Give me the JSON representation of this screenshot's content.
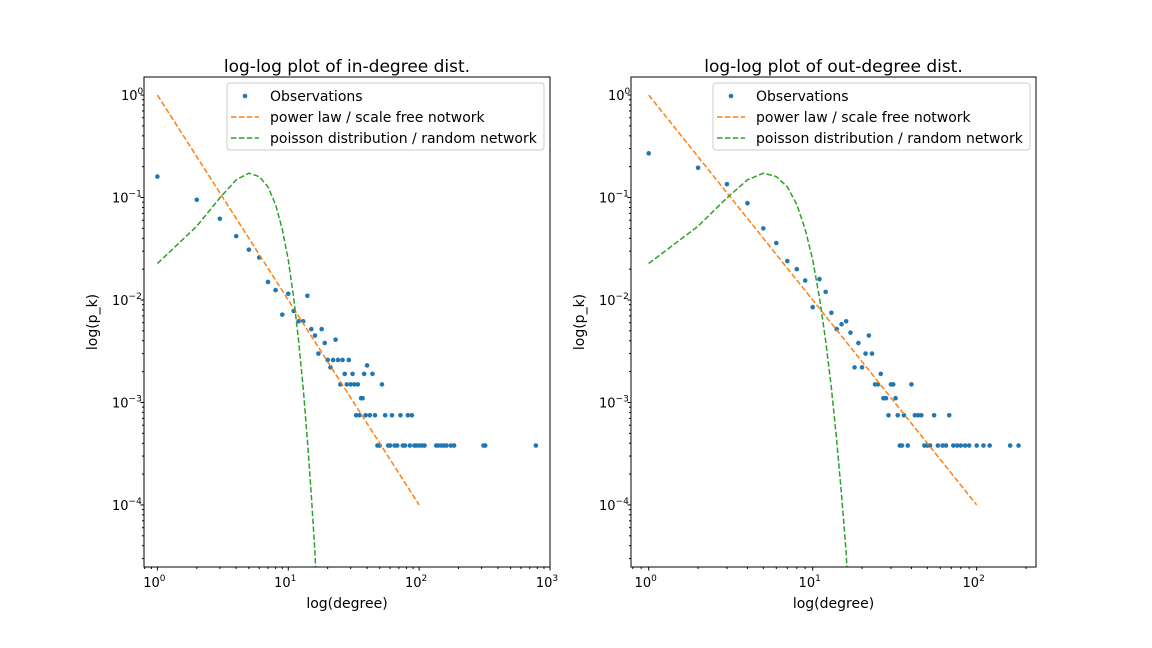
{
  "chart_data": [
    {
      "type": "scatter",
      "title": "log-log plot of in-degree dist.",
      "xlabel": "log(degree)",
      "ylabel": "log(p_k)",
      "xscale": "log",
      "yscale": "log",
      "xlim": [
        0.79,
        1000
      ],
      "ylim": [
        2.48e-05,
        1.5
      ],
      "xticks": [
        {
          "value": 1,
          "base": "10",
          "exp": "0"
        },
        {
          "value": 10,
          "base": "10",
          "exp": "1"
        },
        {
          "value": 100,
          "base": "10",
          "exp": "2"
        },
        {
          "value": 1000,
          "base": "10",
          "exp": "3"
        }
      ],
      "yticks": [
        {
          "value": 1,
          "base": "10",
          "exp": "0"
        },
        {
          "value": 0.1,
          "base": "10",
          "exp": "−1"
        },
        {
          "value": 0.01,
          "base": "10",
          "exp": "−2"
        },
        {
          "value": 0.001,
          "base": "10",
          "exp": "−3"
        },
        {
          "value": 0.0001,
          "base": "10",
          "exp": "−4"
        }
      ],
      "grid": false,
      "legend_position": "top-right",
      "series": [
        {
          "name": "Observations",
          "kind": "points",
          "color": "#1f77b4",
          "x": [
            1,
            2,
            3,
            4,
            5,
            6,
            7,
            8,
            9,
            10,
            11,
            12,
            13,
            14,
            15,
            16,
            17,
            18,
            19,
            20,
            21,
            22,
            23,
            24,
            25,
            26,
            27,
            28,
            29,
            30,
            31,
            32,
            33,
            34,
            35,
            36,
            37,
            38,
            39,
            40,
            42,
            44,
            46,
            48,
            50,
            52,
            55,
            58,
            60,
            62,
            65,
            68,
            72,
            75,
            78,
            82,
            85,
            88,
            92,
            95,
            100,
            105,
            110,
            135,
            140,
            148,
            155,
            162,
            175,
            185,
            310,
            320,
            780
          ],
          "y": [
            0.16,
            0.095,
            0.062,
            0.042,
            0.031,
            0.026,
            0.015,
            0.0125,
            0.0072,
            0.0115,
            0.0078,
            0.0062,
            0.0062,
            0.011,
            0.0052,
            0.0045,
            0.003,
            0.0052,
            0.0038,
            0.0026,
            0.0022,
            0.0026,
            0.0041,
            0.0026,
            0.0015,
            0.0026,
            0.0019,
            0.0015,
            0.0026,
            0.0015,
            0.0019,
            0.0015,
            0.00075,
            0.0015,
            0.00075,
            0.0011,
            0.0011,
            0.0019,
            0.00075,
            0.0023,
            0.00075,
            0.0019,
            0.00075,
            0.00038,
            0.00038,
            0.0015,
            0.00075,
            0.00038,
            0.00038,
            0.00075,
            0.00038,
            0.00038,
            0.00075,
            0.00038,
            0.00038,
            0.00075,
            0.00038,
            0.00075,
            0.00038,
            0.00038,
            0.00038,
            0.00038,
            0.00038,
            0.00038,
            0.00038,
            0.00038,
            0.00038,
            0.00038,
            0.00038,
            0.00038,
            0.00038,
            0.00038,
            0.00038
          ]
        },
        {
          "name": "power law / scale free notwork",
          "kind": "dashed-line",
          "color": "#ff7f0e",
          "x": [
            1,
            100
          ],
          "y": [
            1,
            0.0001
          ]
        },
        {
          "name": "poisson distribution / random network",
          "kind": "dashed-line",
          "color": "#2ca02c",
          "x": [
            1,
            2,
            3,
            4,
            5,
            6,
            7,
            8,
            9,
            10,
            11,
            12,
            13,
            14,
            15,
            16,
            17
          ],
          "y": [
            0.0227,
            0.0525,
            0.0992,
            0.1488,
            0.1727,
            0.1601,
            0.1271,
            0.0854,
            0.0491,
            0.0247,
            0.0105,
            0.004,
            0.00139,
            0.00043,
            0.000125,
            3.43e-05,
            4.6e-06
          ]
        }
      ]
    },
    {
      "type": "scatter",
      "title": "log-log plot of out-degree dist.",
      "xlabel": "log(degree)",
      "ylabel": "log(p_k)",
      "xscale": "log",
      "yscale": "log",
      "xlim": [
        0.78,
        230
      ],
      "ylim": [
        2.48e-05,
        1.5
      ],
      "xticks": [
        {
          "value": 1,
          "base": "10",
          "exp": "0"
        },
        {
          "value": 10,
          "base": "10",
          "exp": "1"
        },
        {
          "value": 100,
          "base": "10",
          "exp": "2"
        }
      ],
      "yticks": [
        {
          "value": 1,
          "base": "10",
          "exp": "0"
        },
        {
          "value": 0.1,
          "base": "10",
          "exp": "−1"
        },
        {
          "value": 0.01,
          "base": "10",
          "exp": "−2"
        },
        {
          "value": 0.001,
          "base": "10",
          "exp": "−3"
        },
        {
          "value": 0.0001,
          "base": "10",
          "exp": "−4"
        }
      ],
      "grid": false,
      "legend_position": "top-right",
      "series": [
        {
          "name": "Observations",
          "kind": "points",
          "color": "#1f77b4",
          "x": [
            1,
            2,
            3,
            4,
            5,
            6,
            7,
            8,
            9,
            10,
            11,
            12,
            13,
            14,
            15,
            16,
            17,
            18,
            19,
            20,
            21,
            22,
            23,
            24,
            25,
            26,
            27,
            28,
            29,
            30,
            31,
            32,
            33,
            34,
            35,
            36,
            38,
            40,
            42,
            44,
            46,
            48,
            50,
            52,
            55,
            58,
            62,
            65,
            68,
            72,
            76,
            80,
            85,
            90,
            100,
            110,
            120,
            160,
            180
          ],
          "y": [
            0.27,
            0.195,
            0.135,
            0.088,
            0.05,
            0.036,
            0.024,
            0.02,
            0.0155,
            0.0085,
            0.016,
            0.012,
            0.0075,
            0.0052,
            0.0058,
            0.0062,
            0.0048,
            0.0022,
            0.0038,
            0.0022,
            0.003,
            0.0045,
            0.003,
            0.0015,
            0.0015,
            0.0019,
            0.0011,
            0.0011,
            0.00075,
            0.0015,
            0.0015,
            0.0011,
            0.00075,
            0.00038,
            0.00038,
            0.00075,
            0.00038,
            0.0015,
            0.00075,
            0.00075,
            0.00075,
            0.00038,
            0.00038,
            0.00038,
            0.00075,
            0.00038,
            0.00038,
            0.00038,
            0.00075,
            0.00038,
            0.00038,
            0.00038,
            0.00038,
            0.00038,
            0.00038,
            0.00038,
            0.00038,
            0.00038,
            0.00038
          ]
        },
        {
          "name": "power law / scale free notwork",
          "kind": "dashed-line",
          "color": "#ff7f0e",
          "x": [
            1,
            100
          ],
          "y": [
            1,
            0.0001
          ]
        },
        {
          "name": "poisson distribution / random network",
          "kind": "dashed-line",
          "color": "#2ca02c",
          "x": [
            1,
            2,
            3,
            4,
            5,
            6,
            7,
            8,
            9,
            10,
            11,
            12,
            13,
            14,
            15,
            16,
            17
          ],
          "y": [
            0.0227,
            0.0525,
            0.0992,
            0.1488,
            0.1727,
            0.1601,
            0.1271,
            0.0854,
            0.0491,
            0.0247,
            0.0105,
            0.004,
            0.00139,
            0.00043,
            0.000125,
            3.43e-05,
            4.6e-06
          ]
        }
      ]
    }
  ]
}
